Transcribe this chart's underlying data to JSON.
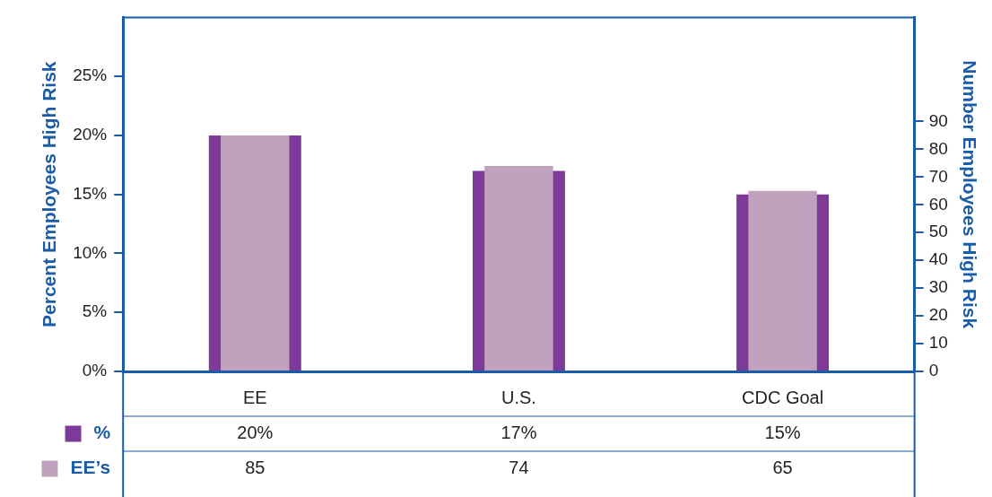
{
  "chart_data": {
    "type": "bar",
    "categories": [
      "EE",
      "U.S.",
      "CDC Goal"
    ],
    "series": [
      {
        "name": "%",
        "color": "#7d3a98",
        "values": [
          20,
          17,
          15
        ],
        "value_labels": [
          "20%",
          "17%",
          "15%"
        ]
      },
      {
        "name": "EE’s",
        "color": "#c0a2bf",
        "axis": "y2",
        "values": [
          85,
          74,
          65
        ],
        "value_labels": [
          "85",
          "74",
          "65"
        ]
      }
    ],
    "ylabel": "Percent Employees High Risk",
    "y2label": "Number Employees High Risk",
    "ylim": [
      0,
      30
    ],
    "yticks": [
      {
        "value": 0,
        "label": "0%"
      },
      {
        "value": 5,
        "label": "5%"
      },
      {
        "value": 10,
        "label": "10%"
      },
      {
        "value": 15,
        "label": "15%"
      },
      {
        "value": 20,
        "label": "20%"
      },
      {
        "value": 25,
        "label": "25%"
      }
    ],
    "y2lim": [
      0,
      127.5
    ],
    "y2ticks": [
      0,
      10,
      20,
      30,
      40,
      50,
      60,
      70,
      80,
      90
    ],
    "grid": false,
    "legend": "left"
  }
}
